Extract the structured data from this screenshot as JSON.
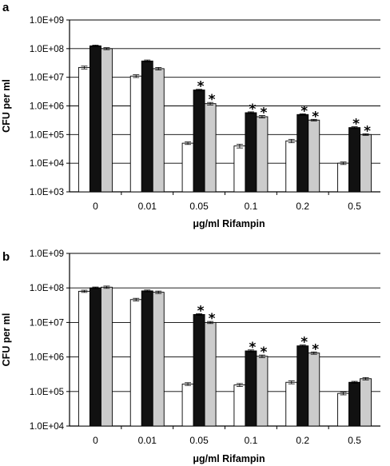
{
  "chart_data": [
    {
      "type": "bar",
      "panel_label": "a",
      "categories": [
        "0",
        "0.01",
        "0.05",
        "0.1",
        "0.2",
        "0.5"
      ],
      "xlabel": "μg/ml Rifampin",
      "ylabel": "CFU per ml",
      "yscale": "log",
      "ylim": [
        1000,
        1000000000
      ],
      "ytick_labels": [
        "1.0E+03",
        "1.0E+04",
        "1.0E+05",
        "1.0E+06",
        "1.0E+07",
        "1.0E+08",
        "1.0E+09"
      ],
      "grid": true,
      "series": [
        {
          "fill": "#ffffff",
          "values": [
            22000000,
            11000000,
            50000,
            40000,
            60000,
            10000
          ],
          "errors": [
            2500000,
            1200000,
            5000,
            6000,
            8000,
            1000
          ]
        },
        {
          "fill": "#111111",
          "values": [
            125000000,
            37000000,
            3600000,
            580000,
            500000,
            175000
          ],
          "errors": [
            8000000,
            3000000,
            200000,
            40000,
            30000,
            12000
          ]
        },
        {
          "fill": "#cccccc",
          "values": [
            100000000,
            20000000,
            1200000,
            420000,
            320000,
            100000
          ],
          "errors": [
            8000000,
            2000000,
            120000,
            40000,
            20000,
            6000
          ]
        }
      ],
      "significance_marks": [
        {
          "category": "0.05",
          "series_index": 1,
          "label": "*"
        },
        {
          "category": "0.05",
          "series_index": 2,
          "label": "*"
        },
        {
          "category": "0.1",
          "series_index": 1,
          "label": "*"
        },
        {
          "category": "0.1",
          "series_index": 2,
          "label": "*"
        },
        {
          "category": "0.2",
          "series_index": 1,
          "label": "*"
        },
        {
          "category": "0.2",
          "series_index": 2,
          "label": "*"
        },
        {
          "category": "0.5",
          "series_index": 1,
          "label": "*"
        },
        {
          "category": "0.5",
          "series_index": 2,
          "label": "*"
        }
      ]
    },
    {
      "type": "bar",
      "panel_label": "b",
      "categories": [
        "0",
        "0.01",
        "0.05",
        "0.1",
        "0.2",
        "0.5"
      ],
      "xlabel": "μg/ml Rifampin",
      "ylabel": "CFU per ml",
      "yscale": "log",
      "ylim": [
        10000,
        1000000000
      ],
      "ytick_labels": [
        "1.0E+04",
        "1.0E+05",
        "1.0E+06",
        "1.0E+07",
        "1.0E+08",
        "1.0E+09"
      ],
      "grid": true,
      "series": [
        {
          "fill": "#ffffff",
          "values": [
            80000000,
            46000000,
            165000,
            155000,
            185000,
            88000
          ],
          "errors": [
            6000000,
            4000000,
            15000,
            15000,
            18000,
            8000
          ]
        },
        {
          "fill": "#111111",
          "values": [
            100000000,
            82000000,
            17000000,
            1500000,
            2100000,
            185000
          ],
          "errors": [
            6000000,
            5000000,
            1000000,
            100000,
            120000,
            12000
          ]
        },
        {
          "fill": "#cccccc",
          "values": [
            105000000,
            75000000,
            10000000,
            1050000,
            1300000,
            235000
          ],
          "errors": [
            8000000,
            6000000,
            700000,
            90000,
            100000,
            18000
          ]
        }
      ],
      "significance_marks": [
        {
          "category": "0.05",
          "series_index": 1,
          "label": "*"
        },
        {
          "category": "0.05",
          "series_index": 2,
          "label": "*"
        },
        {
          "category": "0.1",
          "series_index": 1,
          "label": "*"
        },
        {
          "category": "0.1",
          "series_index": 2,
          "label": "*"
        },
        {
          "category": "0.2",
          "series_index": 1,
          "label": "*"
        },
        {
          "category": "0.2",
          "series_index": 2,
          "label": "*"
        }
      ]
    }
  ]
}
